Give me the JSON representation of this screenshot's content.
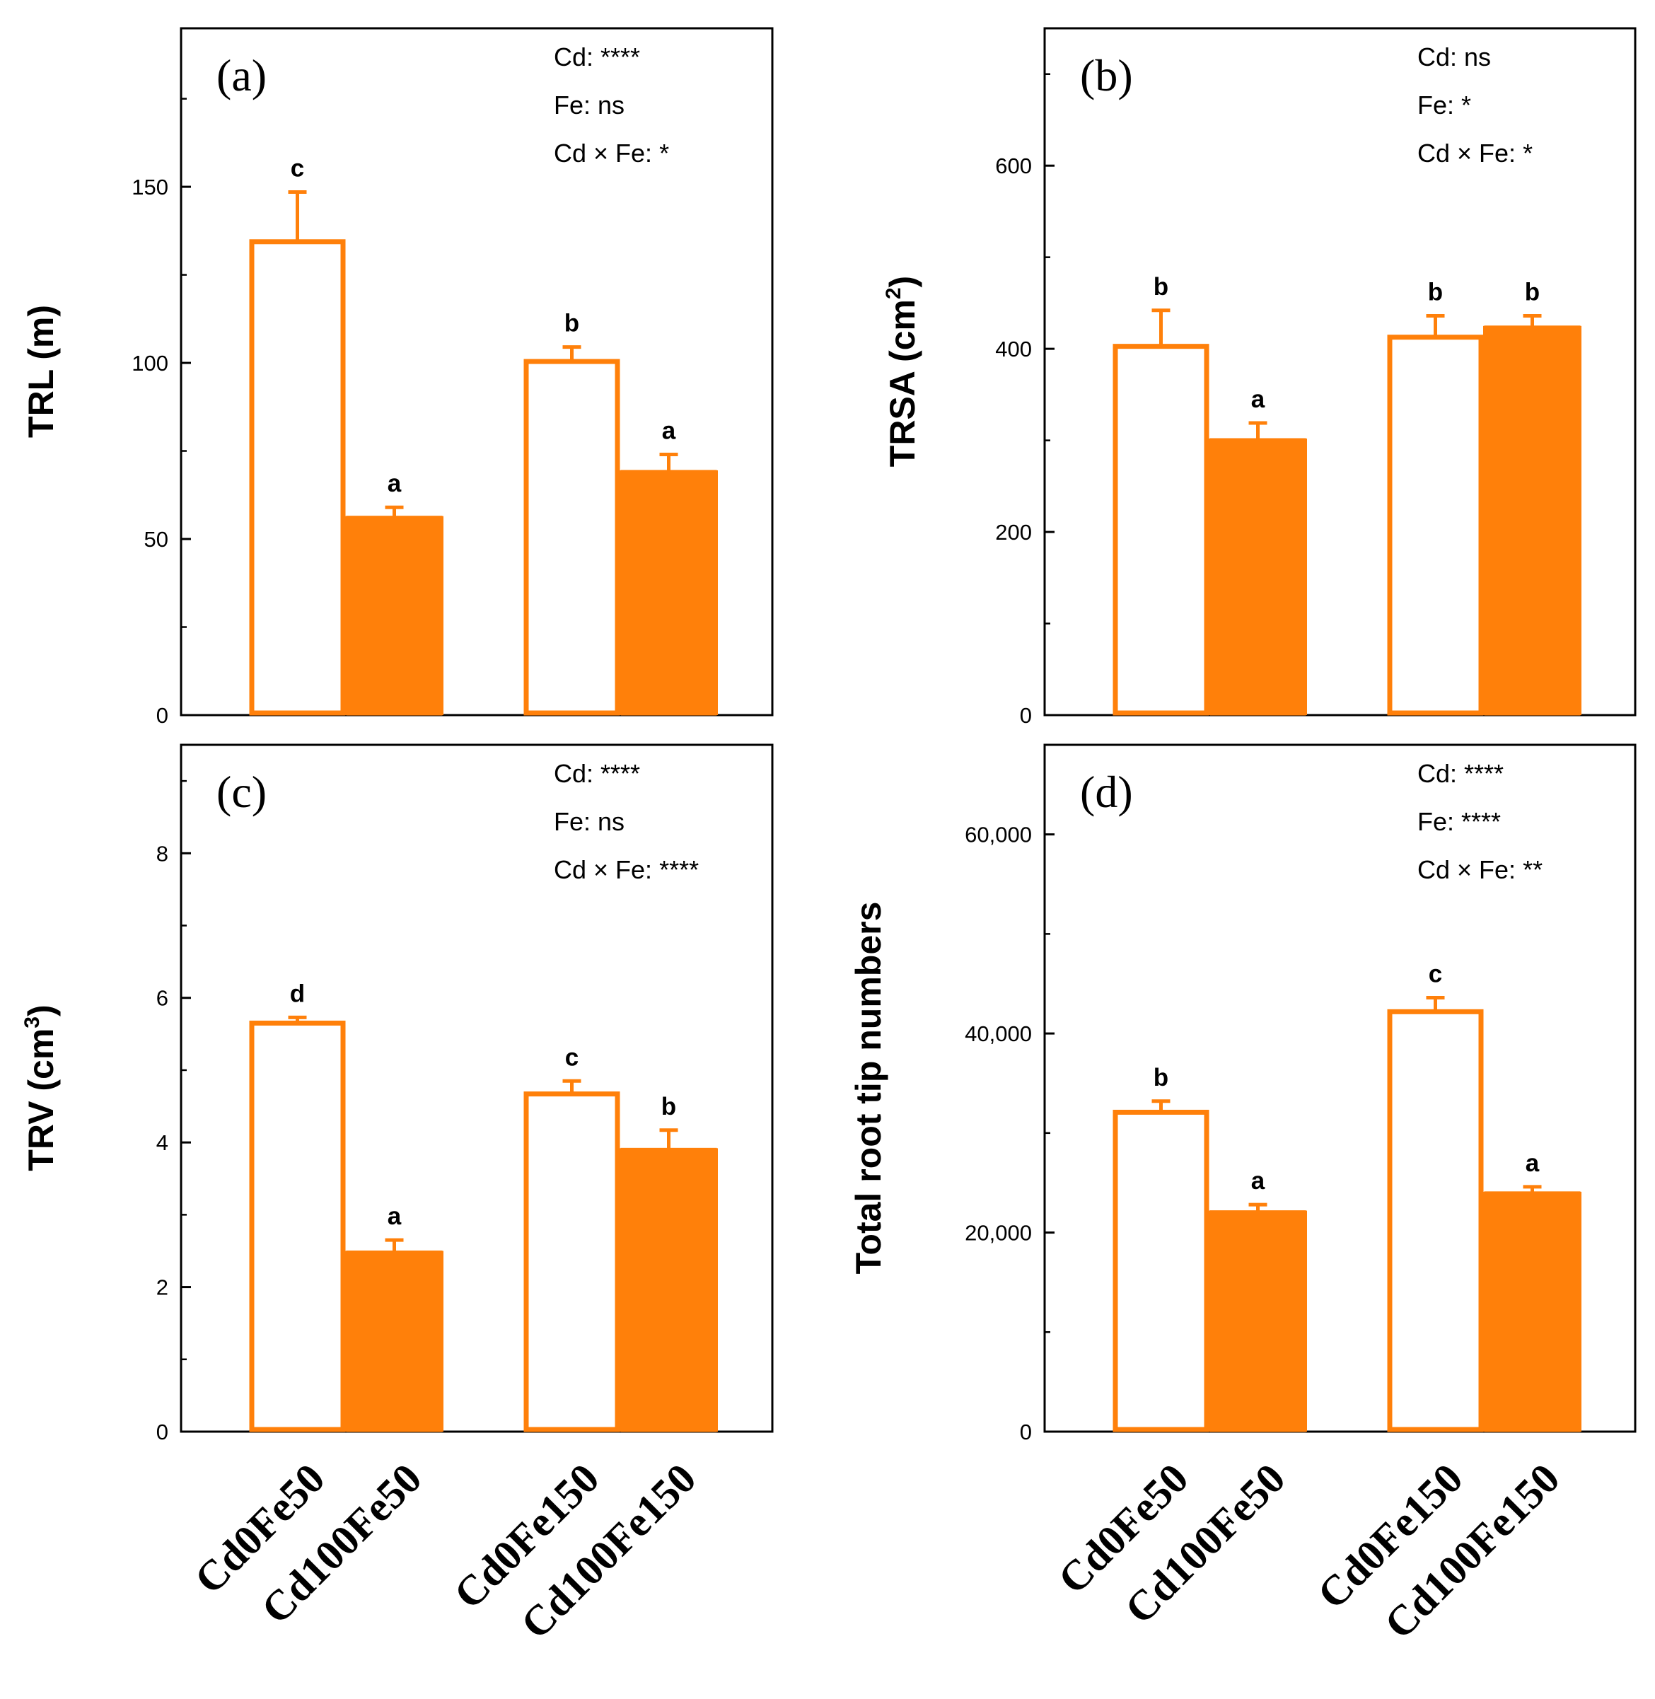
{
  "chart_data": [
    {
      "type": "bar",
      "panel_label": "(a)",
      "ylabel": "TRL (m)",
      "ylim": [
        0,
        195
      ],
      "yticks": [
        0,
        50,
        100,
        150
      ],
      "ytick_labels": [
        "0",
        "50",
        "100",
        "150"
      ],
      "categories": [
        "Cd0Fe50",
        "Cd100Fe50",
        "Cd0Fe150",
        "Cd100Fe150"
      ],
      "values": [
        135,
        56.5,
        101,
        69.5
      ],
      "errors": [
        13.5,
        2.5,
        3.5,
        4.5
      ],
      "letters": [
        "c",
        "a",
        "b",
        "a"
      ],
      "stats": [
        "Cd: ****",
        "Fe: ns",
        "Cd × Fe: *"
      ]
    },
    {
      "type": "bar",
      "panel_label": "(b)",
      "ylabel": "TRSA (cm",
      "ylabel_sup": "2",
      "ylabel_close": ")",
      "ylim": [
        0,
        750
      ],
      "yticks": [
        0,
        200,
        400,
        600
      ],
      "ytick_labels": [
        "0",
        "200",
        "400",
        "600"
      ],
      "categories": [
        "Cd0Fe50",
        "Cd100Fe50",
        "Cd0Fe150",
        "Cd100Fe150"
      ],
      "values": [
        405,
        302,
        415,
        425
      ],
      "errors": [
        37,
        17,
        21,
        11
      ],
      "letters": [
        "b",
        "a",
        "b",
        "b"
      ],
      "stats": [
        "Cd: ns",
        "Fe: *",
        "Cd × Fe: *"
      ]
    },
    {
      "type": "bar",
      "panel_label": "(c)",
      "ylabel": "TRV (cm",
      "ylabel_sup": "3",
      "ylabel_close": ")",
      "ylim": [
        0,
        9.5
      ],
      "yticks": [
        0,
        2,
        4,
        6,
        8
      ],
      "ytick_labels": [
        "0",
        "2",
        "4",
        "6",
        "8"
      ],
      "categories": [
        "Cd0Fe50",
        "Cd100Fe50",
        "Cd0Fe150",
        "Cd100Fe150"
      ],
      "values": [
        5.68,
        2.5,
        4.7,
        3.92
      ],
      "errors": [
        0.05,
        0.15,
        0.15,
        0.25
      ],
      "letters": [
        "d",
        "a",
        "c",
        "b"
      ],
      "stats": [
        "Cd: ****",
        "Fe: ns",
        "Cd × Fe: ****"
      ]
    },
    {
      "type": "bar",
      "panel_label": "(d)",
      "ylabel": "Total root tip numbers",
      "ylim": [
        0,
        69000
      ],
      "yticks": [
        0,
        20000,
        40000,
        60000
      ],
      "ytick_labels": [
        "0",
        "20,000",
        "40,000",
        "60,000"
      ],
      "categories": [
        "Cd0Fe50",
        "Cd100Fe50",
        "Cd0Fe150",
        "Cd100Fe150"
      ],
      "values": [
        32300,
        22200,
        42400,
        24100
      ],
      "errors": [
        900,
        600,
        1200,
        500
      ],
      "letters": [
        "b",
        "a",
        "c",
        "a"
      ],
      "stats": [
        "Cd: ****",
        "Fe: ****",
        "Cd × Fe: **"
      ]
    }
  ],
  "colors": {
    "bar": "#FF800A",
    "frame": "#000000",
    "fill_empty": "#ffffff"
  }
}
